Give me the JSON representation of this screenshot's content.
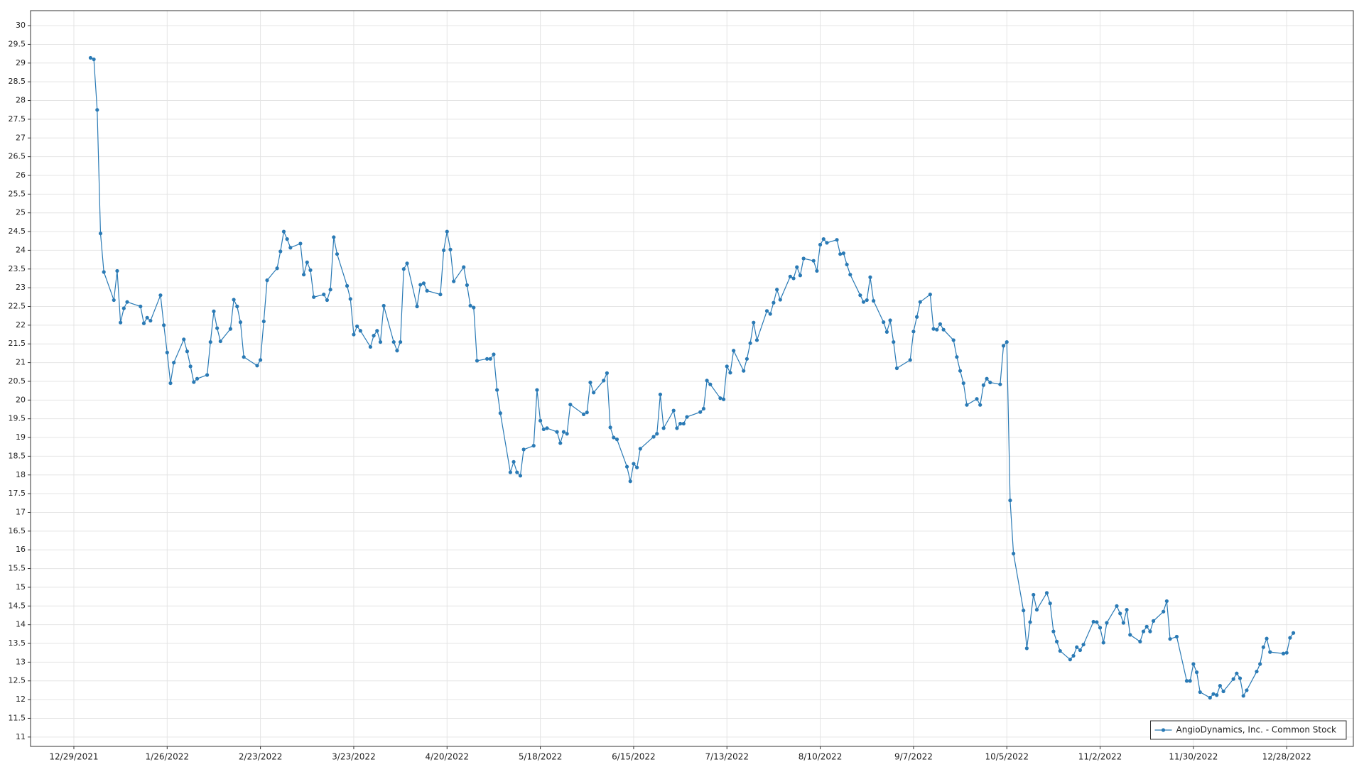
{
  "chart_data": {
    "type": "line",
    "xlim": [
      "12/16/2021",
      "1/17/2023"
    ],
    "xticks": [
      "12/29/2021",
      "1/26/2022",
      "2/23/2022",
      "3/23/2022",
      "4/20/2022",
      "5/18/2022",
      "6/15/2022",
      "7/13/2022",
      "8/10/2022",
      "9/7/2022",
      "10/5/2022",
      "11/2/2022",
      "11/30/2022",
      "12/28/2022"
    ],
    "ylim": [
      10.75,
      30.4
    ],
    "yticks": [
      11,
      11.5,
      12,
      12.5,
      13,
      13.5,
      14,
      14.5,
      15,
      15.5,
      16,
      16.5,
      17,
      17.5,
      18,
      18.5,
      19,
      19.5,
      20,
      20.5,
      21,
      21.5,
      22,
      22.5,
      23,
      23.5,
      24,
      24.5,
      25,
      25.5,
      26,
      26.5,
      27,
      27.5,
      28,
      28.5,
      29,
      29.5,
      30
    ],
    "grid": true,
    "legend": "bottom-right",
    "x": [
      "1/3/2022",
      "1/4/2022",
      "1/5/2022",
      "1/6/2022",
      "1/7/2022",
      "1/10/2022",
      "1/11/2022",
      "1/12/2022",
      "1/13/2022",
      "1/14/2022",
      "1/18/2022",
      "1/19/2022",
      "1/20/2022",
      "1/21/2022",
      "1/24/2022",
      "1/25/2022",
      "1/26/2022",
      "1/27/2022",
      "1/28/2022",
      "1/31/2022",
      "2/1/2022",
      "2/2/2022",
      "2/3/2022",
      "2/4/2022",
      "2/7/2022",
      "2/8/2022",
      "2/9/2022",
      "2/10/2022",
      "2/11/2022",
      "2/14/2022",
      "2/15/2022",
      "2/16/2022",
      "2/17/2022",
      "2/18/2022",
      "2/22/2022",
      "2/23/2022",
      "2/24/2022",
      "2/25/2022",
      "2/28/2022",
      "3/1/2022",
      "3/2/2022",
      "3/3/2022",
      "3/4/2022",
      "3/7/2022",
      "3/8/2022",
      "3/9/2022",
      "3/10/2022",
      "3/11/2022",
      "3/14/2022",
      "3/15/2022",
      "3/16/2022",
      "3/17/2022",
      "3/18/2022",
      "3/21/2022",
      "3/22/2022",
      "3/23/2022",
      "3/24/2022",
      "3/25/2022",
      "3/28/2022",
      "3/29/2022",
      "3/30/2022",
      "3/31/2022",
      "4/1/2022",
      "4/4/2022",
      "4/5/2022",
      "4/6/2022",
      "4/7/2022",
      "4/8/2022",
      "4/11/2022",
      "4/12/2022",
      "4/13/2022",
      "4/14/2022",
      "4/18/2022",
      "4/19/2022",
      "4/20/2022",
      "4/21/2022",
      "4/22/2022",
      "4/25/2022",
      "4/26/2022",
      "4/27/2022",
      "4/28/2022",
      "4/29/2022",
      "5/2/2022",
      "5/3/2022",
      "5/4/2022",
      "5/5/2022",
      "5/6/2022",
      "5/9/2022",
      "5/10/2022",
      "5/11/2022",
      "5/12/2022",
      "5/13/2022",
      "5/16/2022",
      "5/17/2022",
      "5/18/2022",
      "5/19/2022",
      "5/20/2022",
      "5/23/2022",
      "5/24/2022",
      "5/25/2022",
      "5/26/2022",
      "5/27/2022",
      "5/31/2022",
      "6/1/2022",
      "6/2/2022",
      "6/3/2022",
      "6/6/2022",
      "6/7/2022",
      "6/8/2022",
      "6/9/2022",
      "6/10/2022",
      "6/13/2022",
      "6/14/2022",
      "6/15/2022",
      "6/16/2022",
      "6/17/2022",
      "6/21/2022",
      "6/22/2022",
      "6/23/2022",
      "6/24/2022",
      "6/27/2022",
      "6/28/2022",
      "6/29/2022",
      "6/30/2022",
      "7/1/2022",
      "7/5/2022",
      "7/6/2022",
      "7/7/2022",
      "7/8/2022",
      "7/11/2022",
      "7/12/2022",
      "7/13/2022",
      "7/14/2022",
      "7/15/2022",
      "7/18/2022",
      "7/19/2022",
      "7/20/2022",
      "7/21/2022",
      "7/22/2022",
      "7/25/2022",
      "7/26/2022",
      "7/27/2022",
      "7/28/2022",
      "7/29/2022",
      "8/1/2022",
      "8/2/2022",
      "8/3/2022",
      "8/4/2022",
      "8/5/2022",
      "8/8/2022",
      "8/9/2022",
      "8/10/2022",
      "8/11/2022",
      "8/12/2022",
      "8/15/2022",
      "8/16/2022",
      "8/17/2022",
      "8/18/2022",
      "8/19/2022",
      "8/22/2022",
      "8/23/2022",
      "8/24/2022",
      "8/25/2022",
      "8/26/2022",
      "8/29/2022",
      "8/30/2022",
      "8/31/2022",
      "9/1/2022",
      "9/2/2022",
      "9/6/2022",
      "9/7/2022",
      "9/8/2022",
      "9/9/2022",
      "9/12/2022",
      "9/13/2022",
      "9/14/2022",
      "9/15/2022",
      "9/16/2022",
      "9/19/2022",
      "9/20/2022",
      "9/21/2022",
      "9/22/2022",
      "9/23/2022",
      "9/26/2022",
      "9/27/2022",
      "9/28/2022",
      "9/29/2022",
      "9/30/2022",
      "10/3/2022",
      "10/4/2022",
      "10/5/2022",
      "10/6/2022",
      "10/7/2022",
      "10/10/2022",
      "10/11/2022",
      "10/12/2022",
      "10/13/2022",
      "10/14/2022",
      "10/17/2022",
      "10/18/2022",
      "10/19/2022",
      "10/20/2022",
      "10/21/2022",
      "10/24/2022",
      "10/25/2022",
      "10/26/2022",
      "10/27/2022",
      "10/28/2022",
      "10/31/2022",
      "11/1/2022",
      "11/2/2022",
      "11/3/2022",
      "11/4/2022",
      "11/7/2022",
      "11/8/2022",
      "11/9/2022",
      "11/10/2022",
      "11/11/2022",
      "11/14/2022",
      "11/15/2022",
      "11/16/2022",
      "11/17/2022",
      "11/18/2022",
      "11/21/2022",
      "11/22/2022",
      "11/23/2022",
      "11/25/2022",
      "11/28/2022",
      "11/29/2022",
      "11/30/2022",
      "12/1/2022",
      "12/2/2022",
      "12/5/2022",
      "12/6/2022",
      "12/7/2022",
      "12/8/2022",
      "12/9/2022",
      "12/12/2022",
      "12/13/2022",
      "12/14/2022",
      "12/15/2022",
      "12/16/2022",
      "12/19/2022",
      "12/20/2022",
      "12/21/2022",
      "12/22/2022",
      "12/23/2022",
      "12/27/2022",
      "12/28/2022",
      "12/29/2022",
      "12/30/2022"
    ],
    "series": [
      {
        "name": "AngioDynamics, Inc. - Common Stock",
        "color": "#2a7ab5",
        "values": [
          29.14,
          29.1,
          27.75,
          24.45,
          23.42,
          22.67,
          23.45,
          22.07,
          22.45,
          22.62,
          22.5,
          22.05,
          22.2,
          22.12,
          22.8,
          22.0,
          21.27,
          20.45,
          21.0,
          21.62,
          21.3,
          20.9,
          20.48,
          20.57,
          20.67,
          21.55,
          22.37,
          21.92,
          21.57,
          21.9,
          22.68,
          22.5,
          22.08,
          21.15,
          20.92,
          21.07,
          22.1,
          23.2,
          23.52,
          23.97,
          24.5,
          24.3,
          24.07,
          24.18,
          23.35,
          23.68,
          23.47,
          22.75,
          22.82,
          22.67,
          22.95,
          24.35,
          23.9,
          23.05,
          22.7,
          21.75,
          21.97,
          21.85,
          21.42,
          21.72,
          21.85,
          21.55,
          22.52,
          21.55,
          21.32,
          21.55,
          23.5,
          23.65,
          22.5,
          23.08,
          23.12,
          22.92,
          22.82,
          24.0,
          24.5,
          24.02,
          23.17,
          23.55,
          23.07,
          22.52,
          22.47,
          21.05,
          21.1,
          21.1,
          21.22,
          20.27,
          19.65,
          18.07,
          18.35,
          18.07,
          17.98,
          18.68,
          18.78,
          20.27,
          19.45,
          19.22,
          19.25,
          19.15,
          18.85,
          19.15,
          19.1,
          19.88,
          19.62,
          19.67,
          20.47,
          20.2,
          20.52,
          20.72,
          19.27,
          19.0,
          18.95,
          18.22,
          17.83,
          18.3,
          18.2,
          18.7,
          19.02,
          19.1,
          20.15,
          19.25,
          19.72,
          19.25,
          19.37,
          19.37,
          19.55,
          19.68,
          19.77,
          20.52,
          20.42,
          20.05,
          20.02,
          20.9,
          20.73,
          21.32,
          20.78,
          21.1,
          21.52,
          22.07,
          21.6,
          22.38,
          22.3,
          22.6,
          22.95,
          22.68,
          23.3,
          23.25,
          23.55,
          23.33,
          23.78,
          23.72,
          23.45,
          24.15,
          24.3,
          24.2,
          24.28,
          23.9,
          23.92,
          23.62,
          23.35,
          22.8,
          22.62,
          22.67,
          23.28,
          22.65,
          22.08,
          21.82,
          22.13,
          21.55,
          20.85,
          21.07,
          21.83,
          22.22,
          22.62,
          22.82,
          21.9,
          21.88,
          22.03,
          21.88,
          21.6,
          21.15,
          20.78,
          20.45,
          19.87,
          20.03,
          19.87,
          20.4,
          20.57,
          20.47,
          20.42,
          21.45,
          21.55,
          17.32,
          15.9,
          14.38,
          13.37,
          14.07,
          14.8,
          14.4,
          14.85,
          14.57,
          13.82,
          13.55,
          13.3,
          13.07,
          13.17,
          13.4,
          13.32,
          13.47,
          14.08,
          14.07,
          13.92,
          13.52,
          14.05,
          14.5,
          14.3,
          14.05,
          14.4,
          13.73,
          13.55,
          13.82,
          13.95,
          13.82,
          14.1,
          14.35,
          14.63,
          13.62,
          13.68,
          12.5,
          12.5,
          12.95,
          12.73,
          12.2,
          12.05,
          12.15,
          12.12,
          12.37,
          12.22,
          12.55,
          12.7,
          12.57,
          12.1,
          12.25,
          12.75,
          12.95,
          13.4,
          13.63,
          13.27,
          13.23,
          13.25,
          13.65,
          13.78
        ]
      }
    ]
  }
}
